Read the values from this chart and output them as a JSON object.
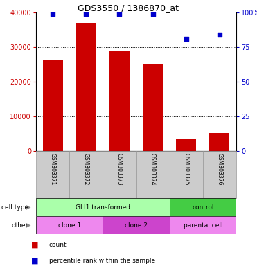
{
  "title": "GDS3550 / 1386870_at",
  "samples": [
    "GSM303371",
    "GSM303372",
    "GSM303373",
    "GSM303374",
    "GSM303375",
    "GSM303376"
  ],
  "counts": [
    26500,
    37000,
    29000,
    25000,
    3500,
    5200
  ],
  "percentile_ranks": [
    99,
    99,
    99,
    99,
    81,
    84
  ],
  "left_ylim": [
    0,
    40000
  ],
  "left_yticks": [
    0,
    10000,
    20000,
    30000,
    40000
  ],
  "right_ylim": [
    0,
    100
  ],
  "right_yticks": [
    0,
    25,
    50,
    75,
    100
  ],
  "bar_color": "#cc0000",
  "dot_color": "#0000cc",
  "left_tick_color": "#cc0000",
  "right_tick_color": "#0000cc",
  "cell_type_labels": [
    {
      "text": "GLI1 transformed",
      "start": 0,
      "end": 3,
      "color": "#aaffaa"
    },
    {
      "text": "control",
      "start": 4,
      "end": 5,
      "color": "#44cc44"
    }
  ],
  "other_labels": [
    {
      "text": "clone 1",
      "start": 0,
      "end": 1,
      "color": "#ee88ee"
    },
    {
      "text": "clone 2",
      "start": 2,
      "end": 3,
      "color": "#cc44cc"
    },
    {
      "text": "parental cell",
      "start": 4,
      "end": 5,
      "color": "#ee88ee"
    }
  ],
  "legend_count_label": "count",
  "legend_pct_label": "percentile rank within the sample",
  "n_samples": 6,
  "bar_width": 0.6,
  "bg_color": "#ffffff",
  "sample_bg_color": "#cccccc",
  "sample_separator_color": "#999999"
}
